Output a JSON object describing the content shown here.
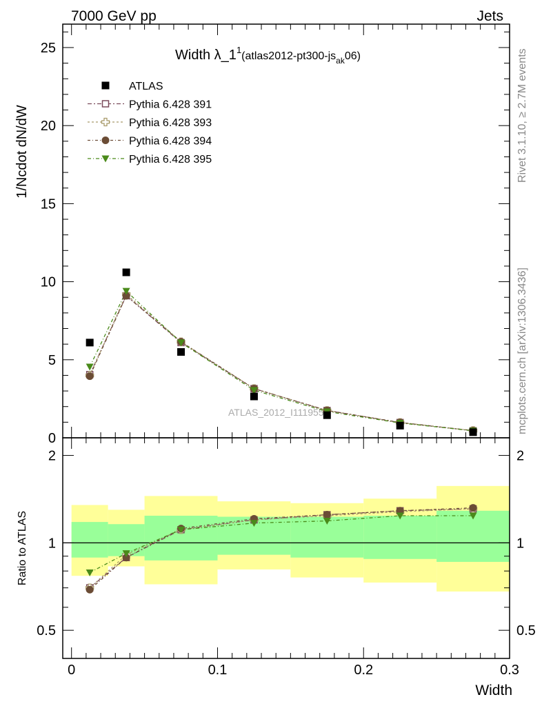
{
  "header": {
    "left": "7000 GeV pp",
    "right": "Jets"
  },
  "side": {
    "rivet": "Rivet 3.1.10, ≥ 2.7M events",
    "mcplots": "mcplots.cern.ch [arXiv:1306.3436]"
  },
  "watermark": "ATLAS_2012_I1119557",
  "colors": {
    "p391": "#7a4a5a",
    "p393": "#a89a6a",
    "p394": "#6b4c35",
    "p395": "#4a8a1a",
    "green_band": "#99ff99",
    "yellow_band": "#ffff99"
  },
  "chart_data": [
    {
      "type": "scatter",
      "title": {
        "main": "Width λ_1",
        "sup": "1",
        "paren_open": "(atlas2012-pt300-js",
        "sub": "ak",
        "paren_close": "06)"
      },
      "xlabel": "Width",
      "ylabel": "1/Ncdot dN/dW",
      "xlim": [
        -0.006,
        0.3
      ],
      "ylim": [
        0,
        26.5
      ],
      "xticks": [
        "0",
        "0.1",
        "0.2",
        "0.3"
      ],
      "yticks": [
        "0",
        "5",
        "10",
        "15",
        "20",
        "25"
      ],
      "x": [
        0.0125,
        0.0375,
        0.075,
        0.125,
        0.175,
        0.225,
        0.275
      ],
      "bin_edges": [
        0,
        0.025,
        0.05,
        0.1,
        0.15,
        0.2,
        0.25,
        0.3
      ],
      "data": {
        "name": "ATLAS",
        "values": [
          6.1,
          10.6,
          5.5,
          2.65,
          1.45,
          0.78,
          0.36
        ]
      },
      "series": [
        {
          "name": "Pythia 6.428 391",
          "marker": "open-square",
          "values": [
            4.05,
            9.1,
            6.1,
            3.15,
            1.75,
            0.98,
            0.45
          ]
        },
        {
          "name": "Pythia 6.428 393",
          "marker": "open-cross",
          "values": [
            4.0,
            9.2,
            6.15,
            3.15,
            1.75,
            0.98,
            0.46
          ]
        },
        {
          "name": "Pythia 6.428 394",
          "marker": "filled-circle",
          "values": [
            3.95,
            9.1,
            6.15,
            3.15,
            1.75,
            0.98,
            0.46
          ]
        },
        {
          "name": "Pythia 6.428 395",
          "marker": "filled-triangle-down",
          "values": [
            4.55,
            9.4,
            6.1,
            3.05,
            1.68,
            0.95,
            0.45
          ]
        }
      ]
    },
    {
      "type": "scatter",
      "ylabel": "Ratio to ATLAS",
      "xlabel": "Width",
      "xlim": [
        -0.006,
        0.3
      ],
      "ylim": [
        0.4,
        2.3
      ],
      "yticks": [
        "0.5",
        "1",
        "2"
      ],
      "x": [
        0.0125,
        0.0375,
        0.075,
        0.125,
        0.175,
        0.225,
        0.275
      ],
      "bands": {
        "green": [
          [
            0.89,
            1.18
          ],
          [
            0.9,
            1.16
          ],
          [
            0.87,
            1.24
          ],
          [
            0.91,
            1.23
          ],
          [
            0.89,
            1.23
          ],
          [
            0.88,
            1.24
          ],
          [
            0.86,
            1.29
          ]
        ],
        "yellow": [
          [
            0.77,
            1.35
          ],
          [
            0.83,
            1.3
          ],
          [
            0.72,
            1.45
          ],
          [
            0.81,
            1.39
          ],
          [
            0.76,
            1.37
          ],
          [
            0.73,
            1.42
          ],
          [
            0.68,
            1.57
          ]
        ]
      },
      "series": [
        {
          "name": "Pythia 6.428 391",
          "values": [
            0.7,
            0.89,
            1.11,
            1.2,
            1.25,
            1.29,
            1.31
          ]
        },
        {
          "name": "Pythia 6.428 393",
          "values": [
            0.7,
            0.91,
            1.11,
            1.2,
            1.24,
            1.28,
            1.31
          ]
        },
        {
          "name": "Pythia 6.428 394",
          "values": [
            0.69,
            0.89,
            1.12,
            1.21,
            1.25,
            1.29,
            1.32
          ]
        },
        {
          "name": "Pythia 6.428 395",
          "values": [
            0.79,
            0.92,
            1.11,
            1.17,
            1.19,
            1.24,
            1.24
          ]
        }
      ]
    }
  ]
}
